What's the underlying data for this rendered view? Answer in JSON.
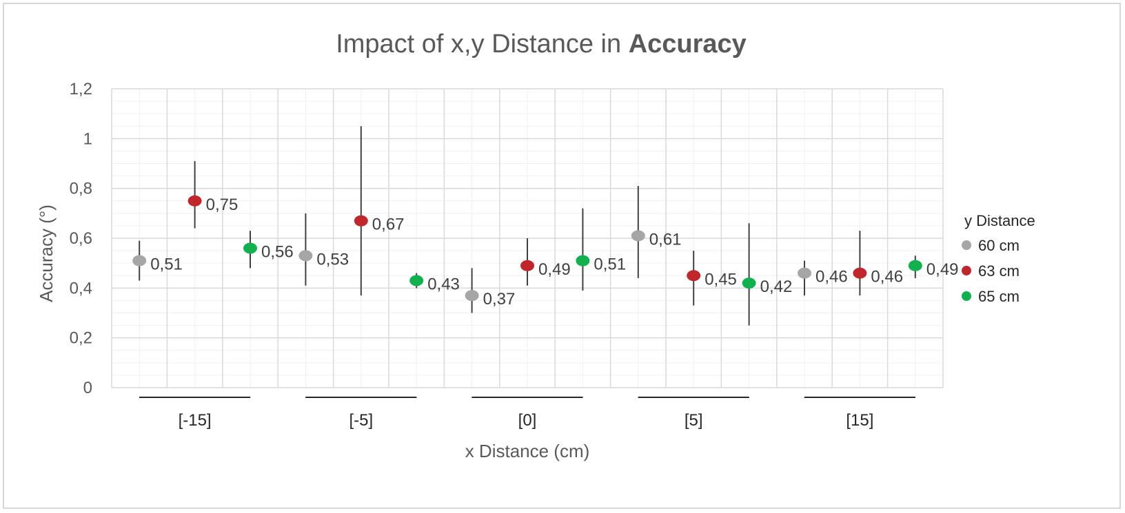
{
  "chart_data": {
    "type": "scatter",
    "title_regular": "Impact of x,y Distance in ",
    "title_bold": "Accuracy",
    "xlabel": "x Distance (cm)",
    "ylabel": "Accuracy (°)",
    "ylim": [
      0,
      1.2
    ],
    "yticks": [
      "0",
      "0,2",
      "0,4",
      "0,6",
      "0,8",
      "1",
      "1,2"
    ],
    "ytick_values": [
      0,
      0.2,
      0.4,
      0.6,
      0.8,
      1.0,
      1.2
    ],
    "categories": [
      "[-15]",
      "[-5]",
      "[0]",
      "[5]",
      "[15]"
    ],
    "grid": true,
    "legend": {
      "title": "y Distance",
      "position": "right"
    },
    "series": [
      {
        "name": "60 cm",
        "color": "#a6a6a6",
        "values": [
          0.51,
          0.53,
          0.37,
          0.61,
          0.46
        ],
        "labels": [
          "0,51",
          "0,53",
          "0,37",
          "0,61",
          "0,46"
        ],
        "err_low": [
          0.43,
          0.41,
          0.3,
          0.44,
          0.37
        ],
        "err_high": [
          0.59,
          0.7,
          0.48,
          0.81,
          0.51
        ]
      },
      {
        "name": "63 cm",
        "color": "#c0272d",
        "values": [
          0.75,
          0.67,
          0.49,
          0.45,
          0.46
        ],
        "labels": [
          "0,75",
          "0,67",
          "0,49",
          "0,45",
          "0,46"
        ],
        "err_low": [
          0.64,
          0.37,
          0.41,
          0.33,
          0.37
        ],
        "err_high": [
          0.91,
          1.05,
          0.6,
          0.55,
          0.63
        ]
      },
      {
        "name": "65 cm",
        "color": "#13b04f",
        "values": [
          0.56,
          0.43,
          0.51,
          0.42,
          0.49
        ],
        "labels": [
          "0,56",
          "0,43",
          "0,51",
          "0,42",
          "0,49"
        ],
        "err_low": [
          0.48,
          0.4,
          0.39,
          0.25,
          0.44
        ],
        "err_high": [
          0.63,
          0.46,
          0.72,
          0.66,
          0.53
        ]
      }
    ]
  }
}
